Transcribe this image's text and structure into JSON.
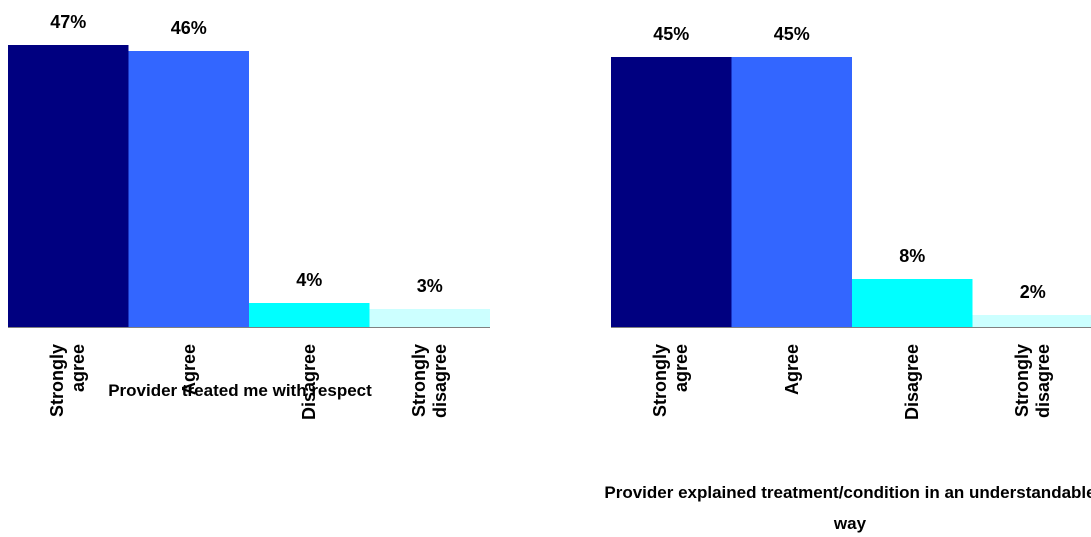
{
  "chart_data": [
    {
      "type": "bar",
      "title": "Provider treated me with respect",
      "categories": [
        "Strongly agree",
        "Agree",
        "Disagree",
        "Strongly disagree"
      ],
      "values": [
        47,
        46,
        4,
        3
      ],
      "value_labels": [
        "47%",
        "46%",
        "4%",
        "3%"
      ],
      "colors": [
        "#000080",
        "#3366ff",
        "#00ffff",
        "#ccffff"
      ]
    },
    {
      "type": "bar",
      "title": "Provider explained treatment/condition in an understandable way",
      "categories": [
        "Strongly agree",
        "Agree",
        "Disagree",
        "Strongly disagree"
      ],
      "values": [
        45,
        45,
        8,
        2
      ],
      "value_labels": [
        "45%",
        "45%",
        "8%",
        "2%"
      ],
      "colors": [
        "#000080",
        "#3366ff",
        "#00ffff",
        "#ccffff"
      ]
    }
  ]
}
